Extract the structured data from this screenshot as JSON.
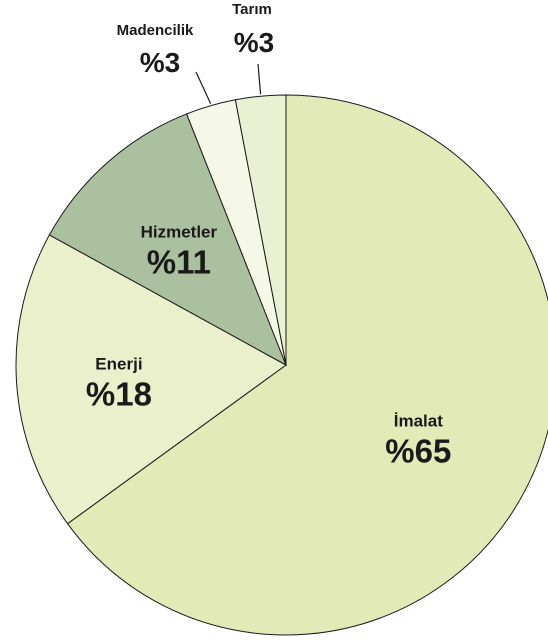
{
  "chart_data": {
    "type": "pie",
    "title": "",
    "slices": [
      {
        "name": "İmalat",
        "value": 65,
        "label": "%65",
        "color": "#e2eab8"
      },
      {
        "name": "Enerji",
        "value": 18,
        "label": "%18",
        "color": "#ebf0cc"
      },
      {
        "name": "Hizmetler",
        "value": 11,
        "label": "%11",
        "color": "#aac09e"
      },
      {
        "name": "Madencilik",
        "value": 3,
        "label": "%3",
        "color": "#f5f8e6"
      },
      {
        "name": "Tarım",
        "value": 3,
        "label": "%3",
        "color": "#eaf0d2"
      }
    ],
    "start": "12 o'clock",
    "direction": "clockwise"
  }
}
